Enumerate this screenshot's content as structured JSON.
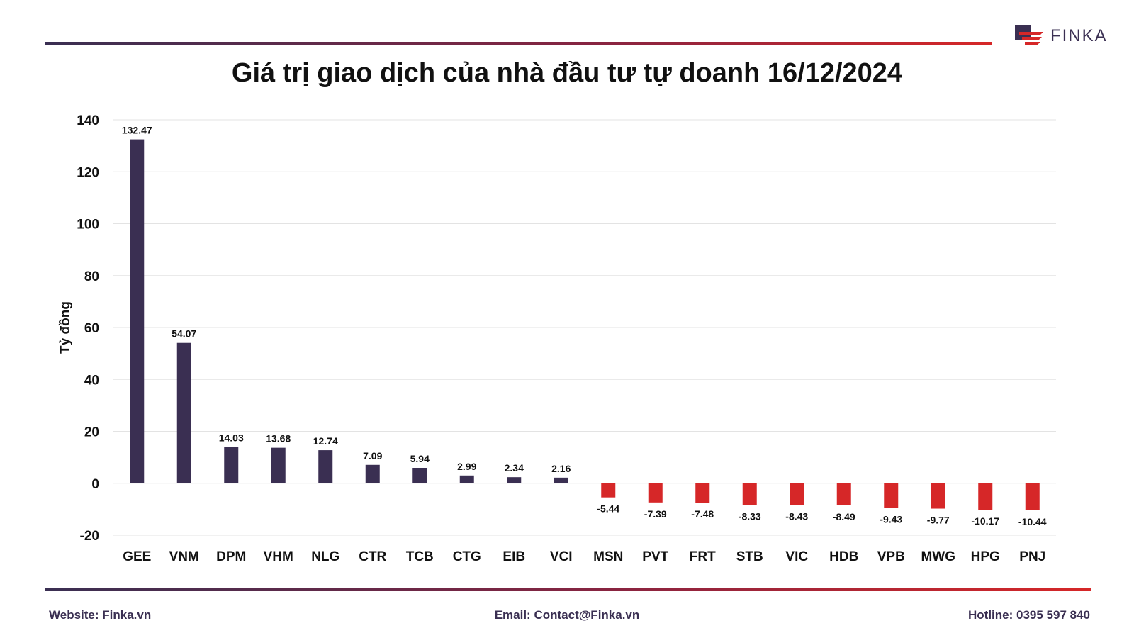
{
  "brand": {
    "logo_text": "FINKA"
  },
  "footer": {
    "website_label": "Website:",
    "website": "Finka.vn",
    "email_label": "Email:",
    "email": "Contact@Finka.vn",
    "hotline_label": "Hotline:",
    "hotline": "0395 597 840"
  },
  "colors": {
    "positive": "#3a2f52",
    "negative": "#d62728",
    "grid": "#e3e3e3",
    "text": "#111111"
  },
  "chart_data": {
    "type": "bar",
    "title": "Giá trị giao dịch của nhà đầu tư tự doanh 16/12/2024",
    "xlabel": "",
    "ylabel": "Tỷ đồng",
    "ylim": [
      -20,
      140
    ],
    "yticks": [
      -20,
      0,
      20,
      40,
      60,
      80,
      100,
      120,
      140
    ],
    "grid": true,
    "categories": [
      "GEE",
      "VNM",
      "DPM",
      "VHM",
      "NLG",
      "CTR",
      "TCB",
      "CTG",
      "EIB",
      "VCI",
      "MSN",
      "PVT",
      "FRT",
      "STB",
      "VIC",
      "HDB",
      "VPB",
      "MWG",
      "HPG",
      "PNJ"
    ],
    "values": [
      132.47,
      54.07,
      14.03,
      13.68,
      12.74,
      7.09,
      5.94,
      2.99,
      2.34,
      2.16,
      -5.44,
      -7.39,
      -7.48,
      -8.33,
      -8.43,
      -8.49,
      -9.43,
      -9.77,
      -10.17,
      -10.44
    ],
    "data_labels": [
      "132.47",
      "54.07",
      "14.03",
      "13.68",
      "12.74",
      "7.09",
      "5.94",
      "2.99",
      "2.34",
      "2.16",
      "-5.44",
      "-7.39",
      "-7.48",
      "-8.33",
      "-8.43",
      "-8.49",
      "-9.43",
      "-9.77",
      "-10.17",
      "-10.44"
    ]
  }
}
